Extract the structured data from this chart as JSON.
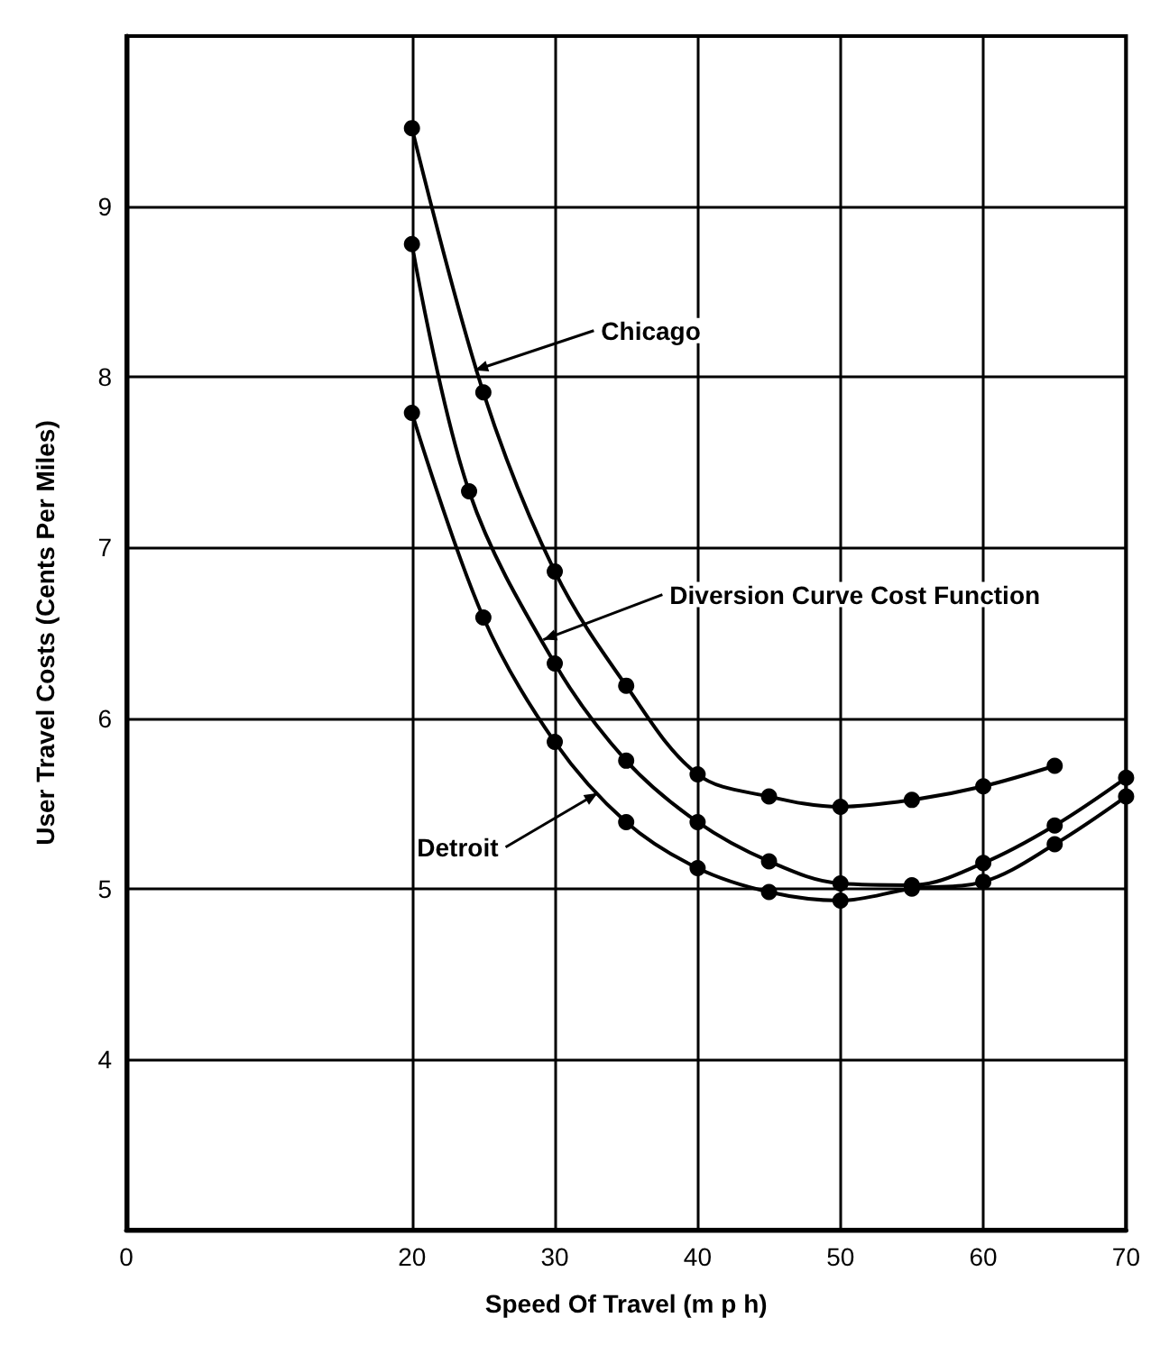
{
  "chart_data": {
    "type": "line",
    "xlabel": "Speed Of Travel (m p h)",
    "ylabel": "User Travel Costs (Cents Per Miles)",
    "xlim": [
      0,
      70
    ],
    "xticks": [
      0,
      20,
      30,
      40,
      50,
      60,
      70
    ],
    "ylim": [
      3,
      10
    ],
    "yticks": [
      4,
      5,
      6,
      7,
      8,
      9
    ],
    "grid": true,
    "marker": "circle",
    "line_style": "solid",
    "series": [
      {
        "color": "#000000",
        "x": [
          20,
          25,
          30,
          35,
          40,
          45,
          50,
          55,
          60,
          65
        ],
        "values": [
          9.46,
          7.91,
          6.86,
          6.19,
          5.67,
          5.54,
          5.48,
          5.52,
          5.6,
          5.72
        ]
      },
      {
        "color": "#000000",
        "x": [
          20,
          24,
          30,
          35,
          40,
          45,
          50,
          55,
          60,
          65,
          70
        ],
        "values": [
          8.78,
          7.33,
          6.32,
          5.75,
          5.39,
          5.16,
          5.03,
          5.02,
          5.15,
          5.37,
          5.65
        ]
      },
      {
        "color": "#000000",
        "x": [
          20,
          25,
          30,
          35,
          40,
          45,
          50,
          55,
          60,
          65,
          70
        ],
        "values": [
          7.79,
          6.59,
          5.86,
          5.39,
          5.12,
          4.98,
          4.93,
          5.0,
          5.04,
          5.26,
          5.54
        ]
      }
    ],
    "annotations": [
      {
        "text": "Chicago",
        "x": 24.4,
        "y": 8.04
      },
      {
        "text": "Diversion Curve Cost Function",
        "x": 29.2,
        "y": 6.46
      },
      {
        "text": "Detroit",
        "x": 33,
        "y": 5.56
      }
    ]
  }
}
